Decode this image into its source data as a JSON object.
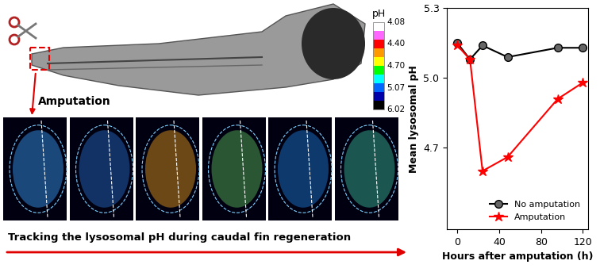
{
  "chart_data": {
    "type": "line",
    "xlabel": "Hours after amputation (h)",
    "ylabel": "Mean lysosomal pH",
    "x": [
      0,
      12,
      24,
      48,
      96,
      120
    ],
    "series": [
      {
        "name": "No amputation",
        "color": "#000000",
        "marker": "circle",
        "line_style": "solid",
        "values": [
          5.15,
          5.08,
          5.14,
          5.09,
          5.13,
          5.13
        ]
      },
      {
        "name": "Amputation",
        "color": "#ff0000",
        "marker": "star",
        "line_style": "solid",
        "values": [
          5.14,
          5.08,
          4.6,
          4.66,
          4.91,
          4.98
        ]
      }
    ],
    "xlim": [
      -10,
      125
    ],
    "xticks": [
      0,
      40,
      80,
      120
    ],
    "ylim": [
      4.35,
      5.3
    ],
    "yticks": [
      4.7,
      {
        "value": 5,
        "label": "5.0"
      },
      5.3
    ],
    "legend": "lower right"
  },
  "diagram": {
    "amputation_label": "Amputation",
    "caption": "Tracking the lysosomal pH during caudal fin regeneration",
    "ph_scale": {
      "title": "pH",
      "labels": [
        "4.08",
        "4.40",
        "4.70",
        "5.07",
        "6.02"
      ],
      "colors": [
        "#ffffff",
        "#ff66ff",
        "#ff0000",
        "#ff9900",
        "#ffff00",
        "#00ff00",
        "#00ffff",
        "#0066ff",
        "#0000aa",
        "#000000"
      ]
    }
  }
}
